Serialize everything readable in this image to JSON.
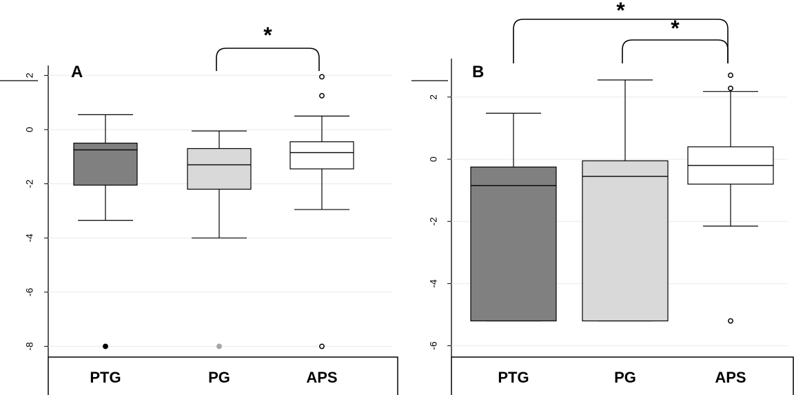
{
  "chart_data": [
    {
      "type": "box",
      "panel_label": "A",
      "categories": [
        "PTG",
        "PG",
        "APS"
      ],
      "ylim": [
        -8.4,
        2.4
      ],
      "yticks": [
        "2",
        "0",
        "-2",
        "-4",
        "-6",
        "-8"
      ],
      "grid": true,
      "boxes": [
        {
          "category": "PTG",
          "whisker_low": -3.35,
          "q1": -2.05,
          "median": -0.75,
          "q3": -0.5,
          "whisker_high": 0.55,
          "outliers": [
            -8.0
          ],
          "fill": "#808080",
          "outlier_style": "filled-black"
        },
        {
          "category": "PG",
          "whisker_low": -4.0,
          "q1": -2.2,
          "median": -1.3,
          "q3": -0.7,
          "whisker_high": -0.05,
          "outliers": [
            -8.0
          ],
          "fill": "#d9d9d9",
          "outlier_style": "filled-gray"
        },
        {
          "category": "APS",
          "whisker_low": -2.95,
          "q1": -1.45,
          "median": -0.85,
          "q3": -0.45,
          "whisker_high": 0.5,
          "outliers": [
            1.95,
            1.25,
            -8.0
          ],
          "fill": "#ffffff",
          "outlier_style": "hollow"
        }
      ],
      "significance": [
        {
          "from": "PG",
          "to": "APS",
          "label": "*"
        }
      ]
    },
    {
      "type": "box",
      "panel_label": "B",
      "categories": [
        "PTG",
        "PG",
        "APS"
      ],
      "ylim": [
        -6.6,
        3.1
      ],
      "yticks": [
        "2",
        "0",
        "-2",
        "-4",
        "-6"
      ],
      "grid": true,
      "boxes": [
        {
          "category": "PTG",
          "whisker_low": -5.2,
          "q1": -5.2,
          "median": -0.85,
          "q3": -0.25,
          "whisker_high": 1.48,
          "outliers": [],
          "fill": "#808080",
          "outlier_style": "filled-black"
        },
        {
          "category": "PG",
          "whisker_low": -5.2,
          "q1": -5.2,
          "median": -0.55,
          "q3": -0.05,
          "whisker_high": 2.55,
          "outliers": [],
          "fill": "#d9d9d9",
          "outlier_style": "filled-gray"
        },
        {
          "category": "APS",
          "whisker_low": -2.15,
          "q1": -0.8,
          "median": -0.2,
          "q3": 0.4,
          "whisker_high": 2.18,
          "outliers": [
            2.7,
            2.28,
            -5.2
          ],
          "fill": "#ffffff",
          "outlier_style": "hollow"
        }
      ],
      "significance": [
        {
          "from": "PTG",
          "to": "APS",
          "label": "*"
        },
        {
          "from": "PG",
          "to": "APS",
          "label": "*"
        }
      ]
    }
  ]
}
